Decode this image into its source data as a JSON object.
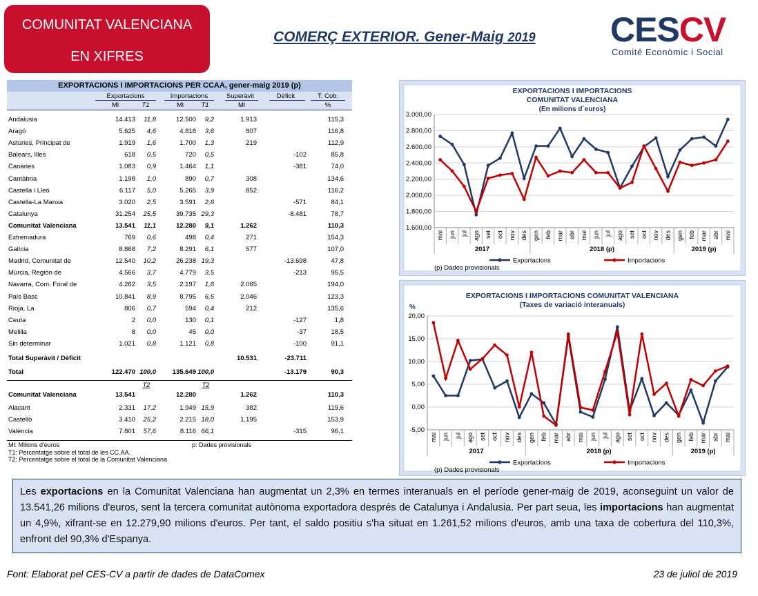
{
  "badge": {
    "line1": "COMUNITAT VALENCIANA",
    "line2": "EN XIFRES"
  },
  "title": {
    "main": "COMERÇ EXTERIOR. Gener-Maig",
    "year": "2019"
  },
  "logo": {
    "word_ces": "CES",
    "word_cv": "CV",
    "subtitle": "Comité Econòmic i Social"
  },
  "table": {
    "title": "EXPORTACIONS  I  IMPORTACIONS PER CCAA, gener-maig 2019 (p)",
    "groups": {
      "exp": "Exportacions",
      "imp": "Importacions",
      "sup": "Superàvit",
      "def": "Dèficit",
      "tcob": "T. Cob."
    },
    "units": {
      "e_m": "Ml",
      "e_t": "T1",
      "i_m": "Ml",
      "i_t": "T1",
      "s": "Ml",
      "t": "%"
    },
    "rows": [
      {
        "name": "Andalusia",
        "exp": "14.413",
        "et": "11,8",
        "imp": "12.500",
        "it": "9,2",
        "sup": "1.913",
        "def": "",
        "tcob": "115,3"
      },
      {
        "name": "Aragó",
        "exp": "5.625",
        "et": "4,6",
        "imp": "4.818",
        "it": "3,6",
        "sup": "807",
        "def": "",
        "tcob": "116,8"
      },
      {
        "name": "Astúries, Principat de",
        "exp": "1.919",
        "et": "1,6",
        "imp": "1.700",
        "it": "1,3",
        "sup": "219",
        "def": "",
        "tcob": "112,9"
      },
      {
        "name": "Balears, Illes",
        "exp": "618",
        "et": "0,5",
        "imp": "720",
        "it": "0,5",
        "sup": "",
        "def": "-102",
        "tcob": "85,8"
      },
      {
        "name": "Canàries",
        "exp": "1.083",
        "et": "0,9",
        "imp": "1.464",
        "it": "1,1",
        "sup": "",
        "def": "-381",
        "tcob": "74,0"
      },
      {
        "name": "Cantàbria",
        "exp": "1.198",
        "et": "1,0",
        "imp": "890",
        "it": "0,7",
        "sup": "308",
        "def": "",
        "tcob": "134,6"
      },
      {
        "name": "Castella i Lleó",
        "exp": "6.117",
        "et": "5,0",
        "imp": "5.265",
        "it": "3,9",
        "sup": "852",
        "def": "",
        "tcob": "116,2"
      },
      {
        "name": "Castella-La Manxa",
        "exp": "3.020",
        "et": "2,5",
        "imp": "3.591",
        "it": "2,6",
        "sup": "",
        "def": "-571",
        "tcob": "84,1"
      },
      {
        "name": "Catalunya",
        "exp": "31.254",
        "et": "25,5",
        "imp": "39.735",
        "it": "29,3",
        "sup": "",
        "def": "-8.481",
        "tcob": "78,7"
      },
      {
        "name": "Comunitat Valenciana",
        "exp": "13.541",
        "et": "11,1",
        "imp": "12.280",
        "it": "9,1",
        "sup": "1.262",
        "def": "",
        "tcob": "110,3",
        "bold": true
      },
      {
        "name": "Extremadura",
        "exp": "769",
        "et": "0,6",
        "imp": "498",
        "it": "0,4",
        "sup": "271",
        "def": "",
        "tcob": "154,3"
      },
      {
        "name": "Galícia",
        "exp": "8.868",
        "et": "7,2",
        "imp": "8.291",
        "it": "6,1",
        "sup": "577",
        "def": "",
        "tcob": "107,0"
      },
      {
        "name": "Madrid, Comunitat de",
        "exp": "12.540",
        "et": "10,2",
        "imp": "26.238",
        "it": "19,3",
        "sup": "",
        "def": "-13.698",
        "tcob": "47,8"
      },
      {
        "name": "Múrcia, Región de",
        "exp": "4.566",
        "et": "3,7",
        "imp": "4.779",
        "it": "3,5",
        "sup": "",
        "def": "-213",
        "tcob": "95,5"
      },
      {
        "name": "Navarra, Com. Foral de",
        "exp": "4.262",
        "et": "3,5",
        "imp": "2.197",
        "it": "1,6",
        "sup": "2.065",
        "def": "",
        "tcob": "194,0"
      },
      {
        "name": "País Basc",
        "exp": "10.841",
        "et": "8,9",
        "imp": "8.795",
        "it": "6,5",
        "sup": "2.046",
        "def": "",
        "tcob": "123,3"
      },
      {
        "name": "Rioja, La",
        "exp": "806",
        "et": "0,7",
        "imp": "594",
        "it": "0,4",
        "sup": "212",
        "def": "",
        "tcob": "135,6"
      },
      {
        "name": "Ceuta",
        "exp": "2",
        "et": "0,0",
        "imp": "130",
        "it": "0,1",
        "sup": "",
        "def": "-127",
        "tcob": "1,8"
      },
      {
        "name": "Melilla",
        "exp": "8",
        "et": "0,0",
        "imp": "45",
        "it": "0,0",
        "sup": "",
        "def": "-37",
        "tcob": "18,5"
      },
      {
        "name": "Sin determinar",
        "exp": "1.021",
        "et": "0,8",
        "imp": "1.121",
        "it": "0,8",
        "sup": "",
        "def": "-100",
        "tcob": "91,1"
      }
    ],
    "total_sd": {
      "name": "Total Superàvit /  Dèficit",
      "sup": "10.531",
      "def": "-23.711"
    },
    "total": {
      "name": "Total",
      "exp": "122.470",
      "et": "100,0",
      "imp": "135.649",
      "it": "100,0",
      "def": "-13.179",
      "tcob": "90,3"
    },
    "t2_label": "T2",
    "cv_rows": [
      {
        "name": "Comunitat Valenciana",
        "exp": "13.541",
        "et": "",
        "imp": "12.280",
        "it": "",
        "sup": "1.262",
        "def": "",
        "tcob": "110,3",
        "bold": true
      },
      {
        "name": "Alacant",
        "exp": "2.331",
        "et": "17,2",
        "imp": "1.949",
        "it": "15,9",
        "sup": "382",
        "def": "",
        "tcob": "119,6"
      },
      {
        "name": "Castelló",
        "exp": "3.410",
        "et": "25,2",
        "imp": "2.215",
        "it": "18,0",
        "sup": "1.195",
        "def": "",
        "tcob": "153,9"
      },
      {
        "name": "València",
        "exp": "7.801",
        "et": "57,6",
        "imp": "8.116",
        "it": "66,1",
        "sup": "",
        "def": "-315",
        "tcob": "96,1"
      }
    ],
    "notes": {
      "ml": "Ml:  Milions d'euros",
      "p": "p: Dades provisionals",
      "t1": "T1:  Percentatge sobre el total de les CC.AA.",
      "t2": "T2:  Percentatge sobre el total de la Comunitat Valenciana"
    }
  },
  "chart_data": [
    {
      "type": "line",
      "title": "EXPORTACIONS I IMPORTACIONS",
      "subtitle": "COMUNITAT VALENCIANA",
      "unit_label": "(En milions d´euros)",
      "categories": [
        "mai",
        "jun",
        "jul",
        "ago",
        "set",
        "oct",
        "nov",
        "des",
        "gen",
        "feb",
        "mar",
        "abr",
        "mai",
        "jun",
        "jul",
        "ago",
        "set",
        "oct",
        "nov",
        "des",
        "gen",
        "feb",
        "mar",
        "abr",
        "mai"
      ],
      "year_labels": [
        "2017",
        "2018 (p)",
        "2019 (p)"
      ],
      "ylim": [
        1600,
        3000
      ],
      "yticks": [
        "1.600,00",
        "1.800,00",
        "2.000,00",
        "2.200,00",
        "2.400,00",
        "2.600,00",
        "2.800,00",
        "3.000,00"
      ],
      "series": [
        {
          "name": "Exportacions",
          "color": "#1f3864",
          "values": [
            2730,
            2630,
            2380,
            1760,
            2370,
            2460,
            2770,
            2210,
            2610,
            2610,
            2830,
            2480,
            2700,
            2570,
            2530,
            2090,
            2360,
            2600,
            2710,
            2230,
            2560,
            2700,
            2720,
            2610,
            2940
          ]
        },
        {
          "name": "Importacions",
          "color": "#c00000",
          "values": [
            2440,
            2300,
            2110,
            1800,
            2210,
            2250,
            2270,
            1950,
            2470,
            2240,
            2300,
            2280,
            2440,
            2280,
            2280,
            2090,
            2160,
            2610,
            2330,
            2050,
            2410,
            2370,
            2400,
            2440,
            2670
          ]
        }
      ],
      "footnote": "(p) Dades provisionals"
    },
    {
      "type": "line",
      "title": "EXPORTACIONS I IMPORTACIONS COMUNITAT VALENCIANA",
      "subtitle": "(Taxes de variació interanuals)",
      "ylabel": "%",
      "categories": [
        "mai",
        "jun",
        "jul",
        "ago",
        "set",
        "oct",
        "nov",
        "des",
        "gen",
        "feb",
        "mar",
        "abr",
        "mai",
        "jun",
        "jul",
        "ago",
        "set",
        "oct",
        "nov",
        "des",
        "gen",
        "feb",
        "mar",
        "abr",
        "mai"
      ],
      "year_labels": [
        "2017",
        "2018 (p)",
        "2019 (p)"
      ],
      "ylim": [
        -5,
        20
      ],
      "yticks": [
        "-5,00",
        "0,00",
        "5,00",
        "10,00",
        "15,00",
        "20,00"
      ],
      "series": [
        {
          "name": "Exportacions",
          "color": "#1f3864",
          "values": [
            6.8,
            2.5,
            2.5,
            10.2,
            10.5,
            4.2,
            5.7,
            -2.3,
            2.9,
            0.9,
            -3.8,
            15.5,
            -1.1,
            -2.2,
            6.1,
            17.6,
            -0.8,
            6.2,
            -1.9,
            0.9,
            -1.8,
            3.7,
            -3.5,
            5.7,
            8.8
          ]
        },
        {
          "name": "Importacions",
          "color": "#c00000",
          "values": [
            18.5,
            6.3,
            14.6,
            8.3,
            10.6,
            13.6,
            11.4,
            0.0,
            12.0,
            -2.0,
            -4.0,
            16.0,
            -0.1,
            -0.7,
            7.8,
            16.5,
            -1.7,
            16.0,
            2.8,
            5.2,
            -2.0,
            6.0,
            4.7,
            7.9,
            9.0
          ]
        }
      ],
      "footnote": "(p) Dades provisionals"
    }
  ],
  "summary": {
    "t1": "Les ",
    "b1": "exportacions",
    "t2": " en la Comunitat Valenciana han augmentat un 2,3% en termes interanuals en el període gener-maig de 2019, aconseguint un valor de 13.541,26 milions d'euros, sent la tercera comunitat autònoma exportadora després de Catalunya i Andalusia. Per part seua, les ",
    "b2": "importacions",
    "t3": " han augmentat un 4,9%, xifrant-se en 12.279,90 milions d'euros. Per tant, el saldo positiu s'ha situat en 1.261,52 milions d'euros, amb una taxa de cobertura del 110,3%, enfront del 90,3% d'Espanya."
  },
  "footer": {
    "source": "Font: Elaborat pel CES-CV a partir de dades de DataComex",
    "date": "23 de juliol de 2019"
  }
}
